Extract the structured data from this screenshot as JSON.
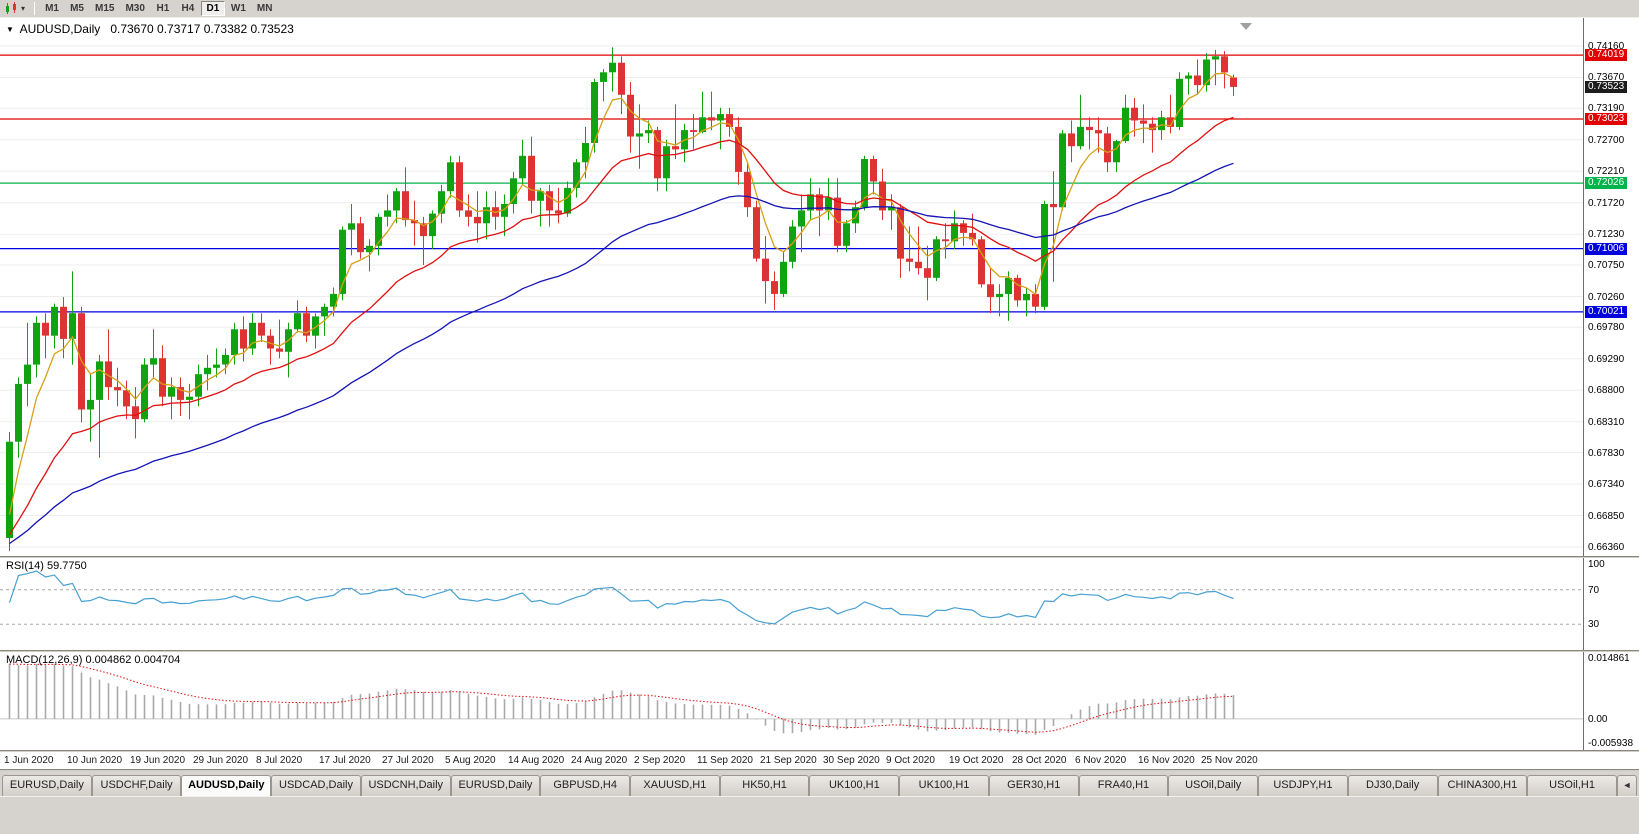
{
  "toolbar": {
    "timeframes": [
      "M1",
      "M5",
      "M15",
      "M30",
      "H1",
      "H4",
      "D1",
      "W1",
      "MN"
    ],
    "active": "D1",
    "dropdown_icon": "▾"
  },
  "chart": {
    "symbol": "AUDUSD,Daily",
    "ohlc": "0.73670 0.73717 0.73382 0.73523",
    "collapse_icon": "▼"
  },
  "chart_data": {
    "type": "candlestick",
    "symbol": "AUDUSD",
    "timeframe": "Daily",
    "style": {
      "up_color": "#0fa30f",
      "down_color": "#dd3333",
      "grid_color": "#ededed",
      "background": "#ffffff"
    },
    "price_axis": {
      "max": 0.7416,
      "min": 0.6636,
      "ticks": [
        "0.74160",
        "0.73670",
        "0.73190",
        "0.72700",
        "0.72210",
        "0.71720",
        "0.71230",
        "0.70750",
        "0.70260",
        "0.69780",
        "0.69290",
        "0.68800",
        "0.68310",
        "0.67830",
        "0.67340",
        "0.66850",
        "0.66360"
      ]
    },
    "x_labels": [
      "1 Jun 2020",
      "10 Jun 2020",
      "19 Jun 2020",
      "29 Jun 2020",
      "8 Jul 2020",
      "17 Jul 2020",
      "27 Jul 2020",
      "5 Aug 2020",
      "14 Aug 2020",
      "24 Aug 2020",
      "2 Sep 2020",
      "11 Sep 2020",
      "21 Sep 2020",
      "30 Sep 2020",
      "9 Oct 2020",
      "19 Oct 2020",
      "28 Oct 2020",
      "6 Nov 2020",
      "16 Nov 2020",
      "25 Nov 2020"
    ],
    "bars_per_label": 7,
    "candles": [
      [
        0.665,
        0.6815,
        0.663,
        0.68
      ],
      [
        0.68,
        0.69,
        0.6775,
        0.689
      ],
      [
        0.689,
        0.6985,
        0.6855,
        0.692
      ],
      [
        0.692,
        0.6995,
        0.69,
        0.6985
      ],
      [
        0.6985,
        0.7,
        0.693,
        0.6965
      ],
      [
        0.6965,
        0.7015,
        0.6945,
        0.701
      ],
      [
        0.701,
        0.7025,
        0.693,
        0.696
      ],
      [
        0.696,
        0.7065,
        0.692,
        0.7
      ],
      [
        0.7,
        0.701,
        0.683,
        0.685
      ],
      [
        0.685,
        0.6905,
        0.68,
        0.6865
      ],
      [
        0.6865,
        0.6935,
        0.6775,
        0.6925
      ],
      [
        0.6925,
        0.6975,
        0.6865,
        0.6885
      ],
      [
        0.6885,
        0.6915,
        0.6855,
        0.688
      ],
      [
        0.688,
        0.6895,
        0.6835,
        0.6855
      ],
      [
        0.6855,
        0.6885,
        0.6805,
        0.6835
      ],
      [
        0.6835,
        0.693,
        0.683,
        0.692
      ],
      [
        0.692,
        0.6975,
        0.69,
        0.693
      ],
      [
        0.693,
        0.695,
        0.6855,
        0.687
      ],
      [
        0.687,
        0.69,
        0.6835,
        0.6885
      ],
      [
        0.6885,
        0.69,
        0.684,
        0.6865
      ],
      [
        0.6865,
        0.689,
        0.6835,
        0.687
      ],
      [
        0.687,
        0.692,
        0.6855,
        0.6905
      ],
      [
        0.6905,
        0.6935,
        0.688,
        0.6915
      ],
      [
        0.6915,
        0.6945,
        0.69,
        0.692
      ],
      [
        0.692,
        0.6945,
        0.6905,
        0.6935
      ],
      [
        0.6935,
        0.6985,
        0.692,
        0.6975
      ],
      [
        0.6975,
        0.6995,
        0.6925,
        0.6945
      ],
      [
        0.6945,
        0.7,
        0.6935,
        0.6985
      ],
      [
        0.6985,
        0.7,
        0.6955,
        0.6965
      ],
      [
        0.6965,
        0.6975,
        0.692,
        0.6945
      ],
      [
        0.6945,
        0.699,
        0.693,
        0.694
      ],
      [
        0.694,
        0.6985,
        0.69,
        0.6975
      ],
      [
        0.6975,
        0.702,
        0.697,
        0.7
      ],
      [
        0.7,
        0.701,
        0.6955,
        0.6965
      ],
      [
        0.6965,
        0.7,
        0.6945,
        0.6995
      ],
      [
        0.6995,
        0.7015,
        0.6965,
        0.701
      ],
      [
        0.701,
        0.704,
        0.6995,
        0.703
      ],
      [
        0.703,
        0.7135,
        0.702,
        0.713
      ],
      [
        0.713,
        0.717,
        0.709,
        0.714
      ],
      [
        0.714,
        0.715,
        0.7085,
        0.7095
      ],
      [
        0.7095,
        0.7115,
        0.7065,
        0.7105
      ],
      [
        0.7105,
        0.7155,
        0.709,
        0.715
      ],
      [
        0.715,
        0.7185,
        0.7135,
        0.716
      ],
      [
        0.716,
        0.7195,
        0.714,
        0.719
      ],
      [
        0.719,
        0.7227,
        0.7135,
        0.7145
      ],
      [
        0.7145,
        0.7175,
        0.7105,
        0.714
      ],
      [
        0.714,
        0.715,
        0.7075,
        0.712
      ],
      [
        0.712,
        0.716,
        0.71,
        0.7155
      ],
      [
        0.7155,
        0.72,
        0.714,
        0.719
      ],
      [
        0.719,
        0.7245,
        0.718,
        0.7235
      ],
      [
        0.7235,
        0.7245,
        0.715,
        0.716
      ],
      [
        0.716,
        0.7185,
        0.7135,
        0.715
      ],
      [
        0.715,
        0.719,
        0.711,
        0.714
      ],
      [
        0.714,
        0.719,
        0.7115,
        0.7165
      ],
      [
        0.7165,
        0.719,
        0.713,
        0.715
      ],
      [
        0.715,
        0.7185,
        0.712,
        0.717
      ],
      [
        0.717,
        0.722,
        0.7155,
        0.721
      ],
      [
        0.721,
        0.727,
        0.72,
        0.7245
      ],
      [
        0.7245,
        0.7275,
        0.7155,
        0.7175
      ],
      [
        0.7175,
        0.7195,
        0.7135,
        0.719
      ],
      [
        0.719,
        0.72,
        0.7135,
        0.716
      ],
      [
        0.716,
        0.7195,
        0.714,
        0.7155
      ],
      [
        0.7155,
        0.7205,
        0.715,
        0.7195
      ],
      [
        0.7195,
        0.724,
        0.718,
        0.7235
      ],
      [
        0.7235,
        0.729,
        0.721,
        0.7265
      ],
      [
        0.7265,
        0.7365,
        0.725,
        0.736
      ],
      [
        0.736,
        0.738,
        0.733,
        0.7375
      ],
      [
        0.7375,
        0.7414,
        0.7345,
        0.739
      ],
      [
        0.739,
        0.74,
        0.731,
        0.734
      ],
      [
        0.734,
        0.736,
        0.725,
        0.7275
      ],
      [
        0.7275,
        0.7325,
        0.7225,
        0.728
      ],
      [
        0.728,
        0.73,
        0.7265,
        0.7285
      ],
      [
        0.7285,
        0.729,
        0.719,
        0.721
      ],
      [
        0.721,
        0.727,
        0.719,
        0.726
      ],
      [
        0.726,
        0.7325,
        0.724,
        0.7255
      ],
      [
        0.7255,
        0.7295,
        0.7235,
        0.7285
      ],
      [
        0.7285,
        0.731,
        0.7255,
        0.7282
      ],
      [
        0.7282,
        0.7345,
        0.728,
        0.7305
      ],
      [
        0.7305,
        0.7345,
        0.7285,
        0.73
      ],
      [
        0.73,
        0.732,
        0.7255,
        0.731
      ],
      [
        0.731,
        0.732,
        0.7275,
        0.729
      ],
      [
        0.729,
        0.7305,
        0.72,
        0.722
      ],
      [
        0.722,
        0.7235,
        0.715,
        0.7165
      ],
      [
        0.7165,
        0.7175,
        0.708,
        0.7085
      ],
      [
        0.7085,
        0.712,
        0.7015,
        0.705
      ],
      [
        0.705,
        0.7065,
        0.7005,
        0.703
      ],
      [
        0.703,
        0.7095,
        0.7025,
        0.708
      ],
      [
        0.708,
        0.7145,
        0.707,
        0.7135
      ],
      [
        0.7135,
        0.7185,
        0.7095,
        0.716
      ],
      [
        0.716,
        0.721,
        0.7145,
        0.7185
      ],
      [
        0.7185,
        0.7195,
        0.712,
        0.716
      ],
      [
        0.716,
        0.721,
        0.7145,
        0.718
      ],
      [
        0.718,
        0.721,
        0.7095,
        0.7105
      ],
      [
        0.7105,
        0.7145,
        0.7095,
        0.714
      ],
      [
        0.714,
        0.7175,
        0.7125,
        0.7165
      ],
      [
        0.7165,
        0.7245,
        0.716,
        0.724
      ],
      [
        0.724,
        0.7245,
        0.7185,
        0.7205
      ],
      [
        0.7205,
        0.7225,
        0.7145,
        0.716
      ],
      [
        0.716,
        0.7185,
        0.713,
        0.7165
      ],
      [
        0.7165,
        0.717,
        0.7055,
        0.7085
      ],
      [
        0.7085,
        0.7135,
        0.7065,
        0.708
      ],
      [
        0.708,
        0.7135,
        0.706,
        0.707
      ],
      [
        0.707,
        0.7105,
        0.702,
        0.7055
      ],
      [
        0.7055,
        0.712,
        0.705,
        0.7115
      ],
      [
        0.7115,
        0.714,
        0.7085,
        0.7112
      ],
      [
        0.7112,
        0.716,
        0.71,
        0.714
      ],
      [
        0.714,
        0.7145,
        0.7105,
        0.7125
      ],
      [
        0.7125,
        0.7155,
        0.7105,
        0.7115
      ],
      [
        0.7115,
        0.712,
        0.704,
        0.7045
      ],
      [
        0.7045,
        0.707,
        0.7,
        0.7025
      ],
      [
        0.7025,
        0.7045,
        0.6995,
        0.703
      ],
      [
        0.703,
        0.7065,
        0.6988,
        0.7055
      ],
      [
        0.7055,
        0.706,
        0.701,
        0.702
      ],
      [
        0.702,
        0.704,
        0.6995,
        0.703
      ],
      [
        0.703,
        0.7045,
        0.7,
        0.701
      ],
      [
        0.701,
        0.7175,
        0.7005,
        0.717
      ],
      [
        0.717,
        0.7221,
        0.7049,
        0.7165
      ],
      [
        0.7165,
        0.7285,
        0.716,
        0.728
      ],
      [
        0.728,
        0.73,
        0.7235,
        0.726
      ],
      [
        0.726,
        0.734,
        0.7255,
        0.729
      ],
      [
        0.729,
        0.7305,
        0.7255,
        0.7285
      ],
      [
        0.7285,
        0.7305,
        0.725,
        0.728
      ],
      [
        0.728,
        0.729,
        0.722,
        0.7235
      ],
      [
        0.7235,
        0.727,
        0.722,
        0.7268
      ],
      [
        0.7268,
        0.734,
        0.7265,
        0.732
      ],
      [
        0.732,
        0.7335,
        0.7275,
        0.73
      ],
      [
        0.73,
        0.7325,
        0.7265,
        0.7295
      ],
      [
        0.7295,
        0.7305,
        0.725,
        0.7285
      ],
      [
        0.7285,
        0.7315,
        0.727,
        0.7305
      ],
      [
        0.7305,
        0.734,
        0.728,
        0.729
      ],
      [
        0.729,
        0.7375,
        0.7285,
        0.7365
      ],
      [
        0.7365,
        0.7375,
        0.734,
        0.737
      ],
      [
        0.737,
        0.7395,
        0.734,
        0.7355
      ],
      [
        0.7355,
        0.7405,
        0.7345,
        0.7395
      ],
      [
        0.7395,
        0.741,
        0.7355,
        0.74
      ],
      [
        0.74,
        0.7408,
        0.735,
        0.7375
      ],
      [
        0.7367,
        0.73717,
        0.73382,
        0.73523
      ]
    ],
    "overlays": {
      "moving_averages": [
        {
          "name": "ma-fast",
          "period": 5,
          "color": "#d4a017",
          "seed": 0.663
        },
        {
          "name": "ma-mid",
          "period": 20,
          "color": "#e01010",
          "seed": 0.664
        },
        {
          "name": "ma-slow",
          "period": 50,
          "color": "#1414b4",
          "seed": 0.6635
        }
      ],
      "horizontal_lines": [
        {
          "price": 0.74019,
          "label": "0.74019",
          "color": "#e00000"
        },
        {
          "price": 0.73023,
          "label": "0.73023",
          "color": "#e00000"
        },
        {
          "price": 0.72026,
          "label": "0.72026",
          "color": "#00b34a"
        },
        {
          "price": 0.71006,
          "label": "0.71006",
          "color": "#0000e0"
        },
        {
          "price": 0.70021,
          "label": "0.70021",
          "color": "#0000e0"
        }
      ],
      "current_price": {
        "value": 0.73523,
        "label": "0.73523",
        "color": "#1c1c1c"
      }
    },
    "indicators": [
      {
        "name": "RSI",
        "label": "RSI(14) 59.7750",
        "period": 14,
        "value": "59.7750",
        "levels": [
          100,
          70,
          30
        ],
        "line_color": "#46a0d2",
        "level_color": "#a8a8a8"
      },
      {
        "name": "MACD",
        "label": "MACD(12,26,9) 0.004862 0.004704",
        "params": [
          12,
          26,
          9
        ],
        "values": [
          "0.004862",
          "0.004704"
        ],
        "axis_labels": [
          "0.014861",
          "0.00",
          "-0.005938"
        ],
        "axis_max": 0.014861,
        "axis_min": -0.005938,
        "histogram_color": "#a9a9a9",
        "signal_color": "#e01010",
        "zero_color": "#c8c8c8"
      }
    ]
  },
  "tabs": {
    "items": [
      "EURUSD,Daily",
      "USDCHF,Daily",
      "AUDUSD,Daily",
      "USDCAD,Daily",
      "USDCNH,Daily",
      "EURUSD,Daily",
      "GBPUSD,H4",
      "XAUUSD,H1",
      "HK50,H1",
      "UK100,H1",
      "UK100,H1",
      "GER30,H1",
      "FRA40,H1",
      "USOil,Daily",
      "USDJPY,H1",
      "DJ30,Daily",
      "CHINA300,H1",
      "USOil,H1"
    ],
    "active_index": 2,
    "scroll_left_label": "◄"
  }
}
